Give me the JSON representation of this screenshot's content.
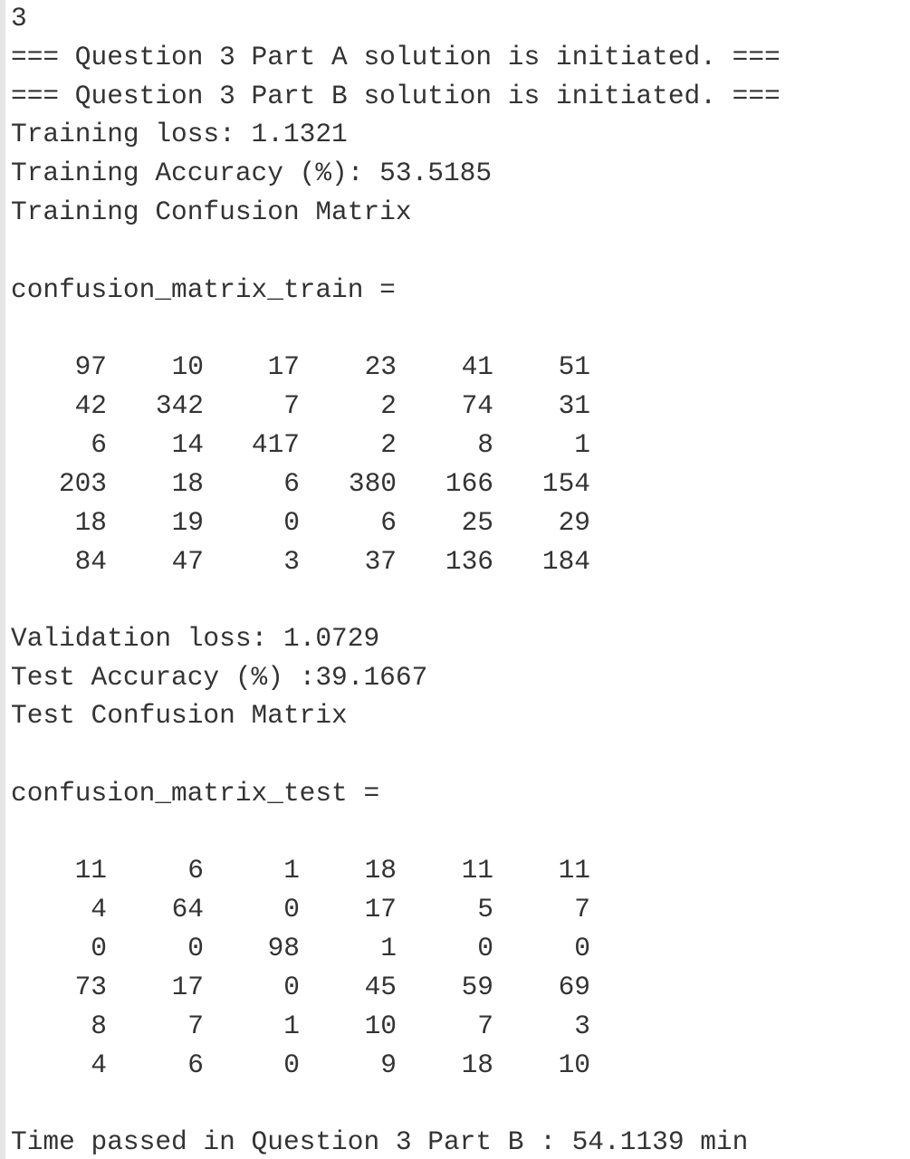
{
  "console": {
    "input_echo": "3",
    "part_a_banner": "=== Question 3 Part A solution is initiated. ===",
    "part_b_banner": "=== Question 3 Part B solution is initiated. ===",
    "training_loss": "Training loss: 1.1321",
    "training_accuracy": "Training Accuracy (%): 53.5185",
    "training_cm_title": "Training Confusion Matrix",
    "train_var_header": "confusion_matrix_train =",
    "train_matrix": [
      [
        "97",
        "10",
        "17",
        "23",
        "41",
        "51"
      ],
      [
        "42",
        "342",
        "7",
        "2",
        "74",
        "31"
      ],
      [
        "6",
        "14",
        "417",
        "2",
        "8",
        "1"
      ],
      [
        "203",
        "18",
        "6",
        "380",
        "166",
        "154"
      ],
      [
        "18",
        "19",
        "0",
        "6",
        "25",
        "29"
      ],
      [
        "84",
        "47",
        "3",
        "37",
        "136",
        "184"
      ]
    ],
    "validation_loss": "Validation loss: 1.0729",
    "test_accuracy": "Test Accuracy (%) :39.1667",
    "test_cm_title": "Test Confusion Matrix",
    "test_var_header": "confusion_matrix_test =",
    "test_matrix": [
      [
        "11",
        "6",
        "1",
        "18",
        "11",
        "11"
      ],
      [
        "4",
        "64",
        "0",
        "17",
        "5",
        "7"
      ],
      [
        "0",
        "0",
        "98",
        "1",
        "0",
        "0"
      ],
      [
        "73",
        "17",
        "0",
        "45",
        "59",
        "69"
      ],
      [
        "8",
        "7",
        "1",
        "10",
        "7",
        "3"
      ],
      [
        "4",
        "6",
        "0",
        "9",
        "18",
        "10"
      ]
    ],
    "time_passed": "Time passed in Question 3 Part B : 54.1139 min"
  }
}
